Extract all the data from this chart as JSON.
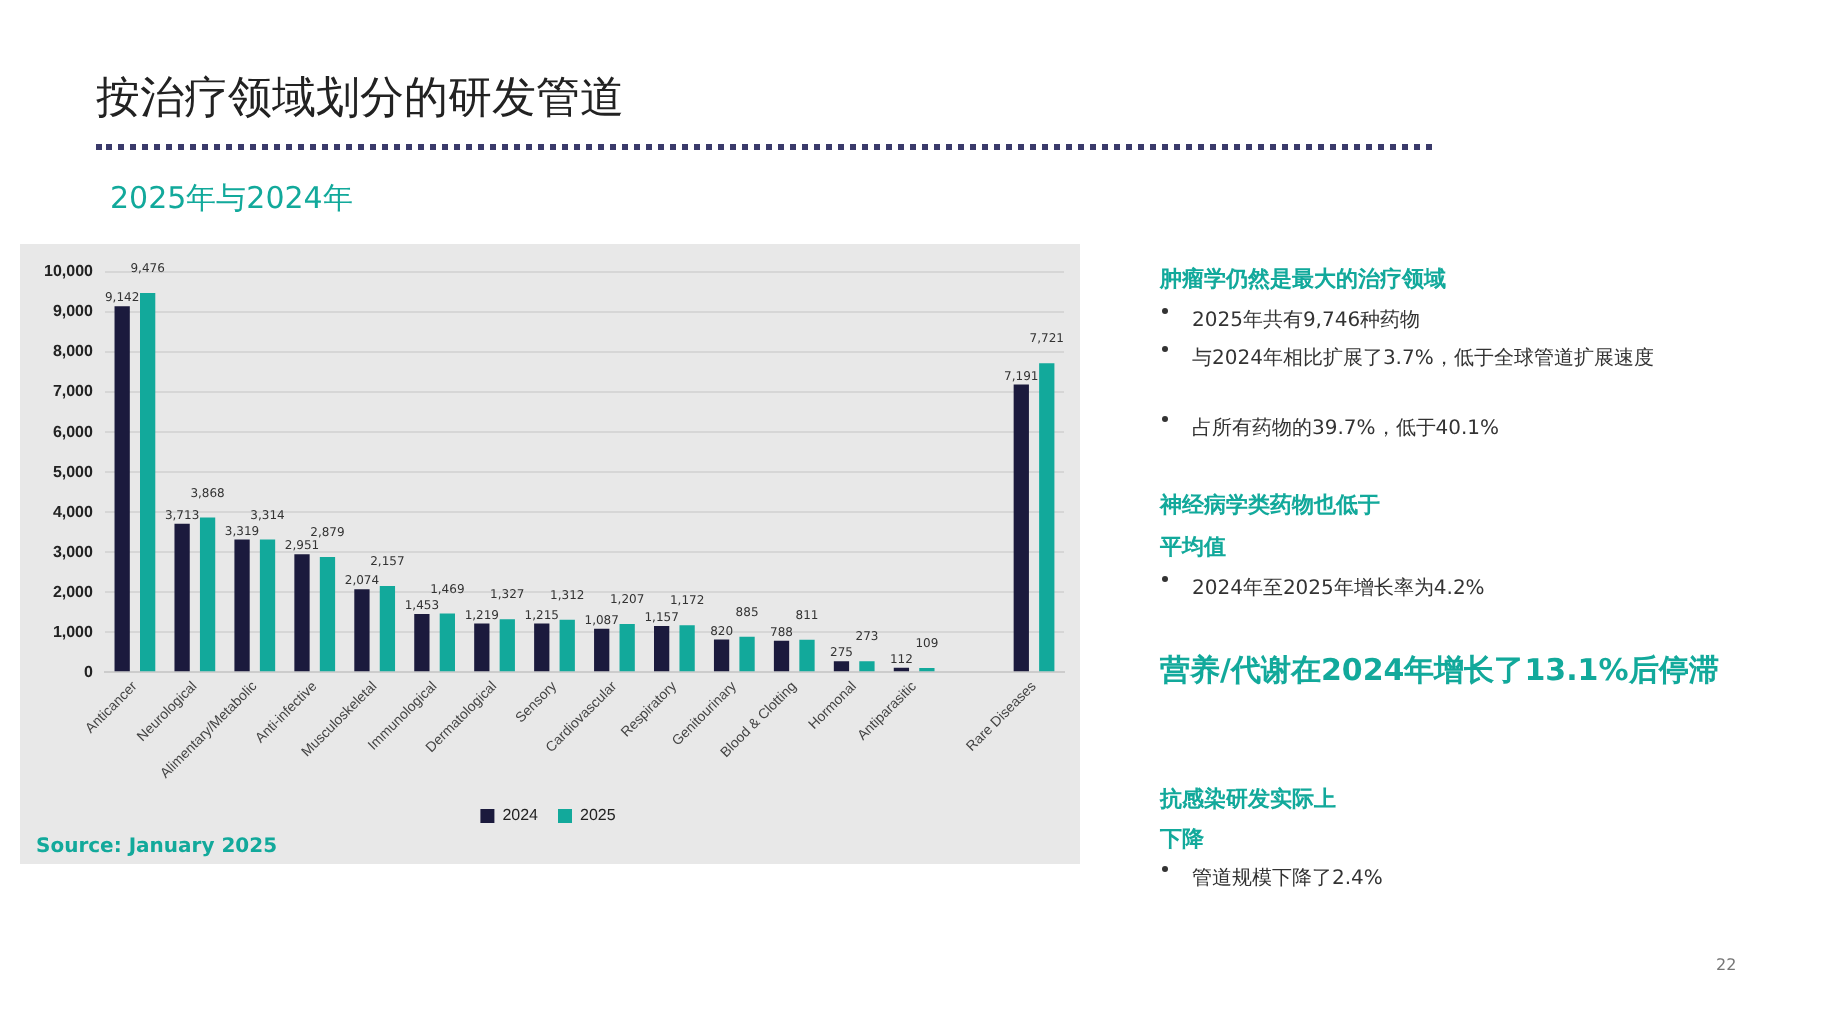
{
  "chart_data": {
    "type": "bar",
    "title": "按治疗领域划分的研发管道",
    "subtitle": "2025年与2024年",
    "categories": [
      "Anticancer",
      "Neurological",
      "Alimentary/Metabolic",
      "Anti-infective",
      "Musculoskeletal",
      "Immunological",
      "Dermatological",
      "Sensory",
      "Cardiovascular",
      "Respiratory",
      "Genitourinary",
      "Blood & Clotting",
      "Hormonal",
      "Antiparasitic",
      null,
      "Rare Diseases"
    ],
    "series": [
      {
        "name": "2024",
        "color": "#1b1a3d",
        "values": [
          9142,
          3713,
          3319,
          2951,
          2074,
          1453,
          1219,
          1215,
          1087,
          1157,
          820,
          788,
          275,
          112,
          null,
          7191
        ],
        "value_labels": [
          "9,142",
          "3,713",
          "3,319",
          "2,951",
          "2,074",
          "1,453",
          "1,219",
          "1,215",
          "1,087",
          "1,157",
          "820",
          "788",
          "275",
          "112",
          null,
          "7,191"
        ]
      },
      {
        "name": "2025",
        "color": "#12a99b",
        "values": [
          9476,
          3868,
          3314,
          2879,
          2157,
          1469,
          1327,
          1312,
          1207,
          1172,
          885,
          811,
          273,
          109,
          null,
          7721
        ],
        "value_labels": [
          "9,476",
          "3,868",
          "3,314",
          "2,879",
          "2,157",
          "1,469",
          "1,327",
          "1,312",
          "1,207",
          "1,172",
          "885",
          "811",
          "273",
          "109",
          null,
          "7,721"
        ]
      }
    ],
    "ylim": [
      0,
      10000
    ],
    "yticks": [
      {
        "value": 0,
        "label": "0"
      },
      {
        "value": 1000,
        "label": "1,000"
      },
      {
        "value": 2000,
        "label": "2,000"
      },
      {
        "value": 3000,
        "label": "3,000"
      },
      {
        "value": 4000,
        "label": "4,000"
      },
      {
        "value": 5000,
        "label": "5,000"
      },
      {
        "value": 6000,
        "label": "6,000"
      },
      {
        "value": 7000,
        "label": "7,000"
      },
      {
        "value": 8000,
        "label": "8,000"
      },
      {
        "value": 9000,
        "label": "9,000"
      },
      {
        "value": 10000,
        "label": "10,000"
      }
    ],
    "grid": "y",
    "legend": "bottom",
    "annotations": [
      "Source: January 2025",
      "肿瘤学仍然是最大的治疗领域",
      "2025年共有9,746种药物",
      "与2024年相比扩展了3.7%，低于全球管道扩展速度",
      "占所有药物的39.7%，低于40.1%",
      "神经病学类药物也低于",
      "平均值",
      "2024年至2025年增长率为4.2%",
      "营养/代谢在2024年增长了13.1%后停滞",
      "抗感染研发实际上",
      "下降",
      "管道规模下降了2.4%",
      "22"
    ]
  }
}
